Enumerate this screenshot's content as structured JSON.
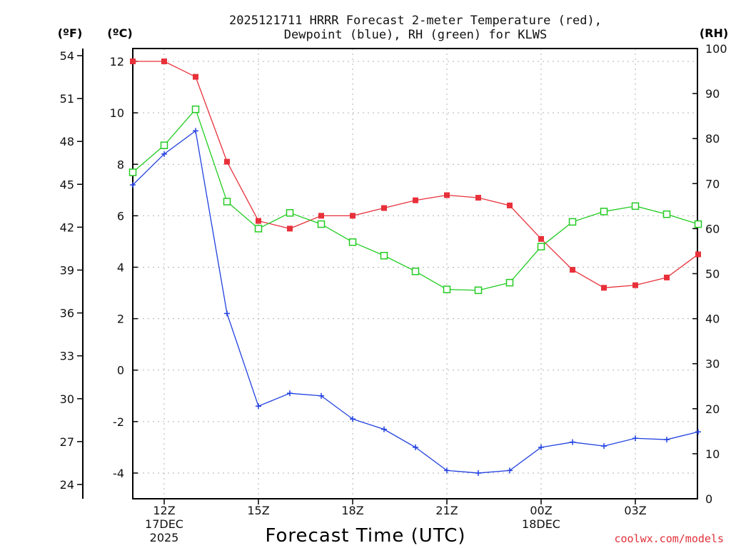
{
  "chart_data": {
    "type": "line",
    "title_line1": "2025121711 HRRR Forecast 2-meter Temperature (red),",
    "title_line2": "Dewpoint (blue), RH (green) for KLWS",
    "xlabel": "Forecast Time (UTC)",
    "credit": "coolwx.com/models",
    "unit_f": "(ºF)",
    "unit_c": "(ºC)",
    "unit_rh": "(RH)",
    "hours": [
      11,
      12,
      13,
      14,
      15,
      16,
      17,
      18,
      19,
      20,
      21,
      22,
      23,
      0,
      1,
      2,
      3,
      4,
      5
    ],
    "x_ticks": [
      {
        "index": 1,
        "lines": [
          "12Z",
          "17DEC",
          "2025"
        ]
      },
      {
        "index": 4,
        "lines": [
          "15Z"
        ]
      },
      {
        "index": 7,
        "lines": [
          "18Z"
        ]
      },
      {
        "index": 10,
        "lines": [
          "21Z"
        ]
      },
      {
        "index": 13,
        "lines": [
          "00Z",
          "18DEC"
        ]
      },
      {
        "index": 16,
        "lines": [
          "03Z"
        ]
      }
    ],
    "ylim_c": [
      -5,
      12.5
    ],
    "yticks_c": [
      "-4",
      "-2",
      "0",
      "2",
      "4",
      "6",
      "8",
      "10",
      "12"
    ],
    "yticks_f": [
      "24",
      "27",
      "30",
      "33",
      "36",
      "39",
      "42",
      "45",
      "48",
      "51",
      "54"
    ],
    "ylim_rh": [
      0,
      100
    ],
    "yticks_rh": [
      "0",
      "10",
      "20",
      "30",
      "40",
      "50",
      "60",
      "70",
      "80",
      "90",
      "100"
    ],
    "series": [
      {
        "name": "Temperature (°C)",
        "color": "#e8303a",
        "marker": "filled-square",
        "axis": "c",
        "values": [
          12.0,
          12.0,
          11.4,
          8.1,
          5.8,
          5.5,
          6.0,
          6.0,
          6.3,
          6.6,
          6.8,
          6.7,
          6.4,
          5.1,
          3.9,
          3.2,
          3.3,
          3.6,
          4.5
        ]
      },
      {
        "name": "Dewpoint (°C)",
        "color": "#2040e0",
        "marker": "plus",
        "axis": "c",
        "values": [
          7.2,
          8.4,
          9.3,
          2.2,
          -1.4,
          -0.9,
          -1.0,
          -1.9,
          -2.3,
          -3.0,
          -3.9,
          -4.0,
          -3.9,
          -3.0,
          -2.8,
          -2.95,
          -2.65,
          -2.7,
          -2.4
        ]
      },
      {
        "name": "RH (%)",
        "color": "#22cc22",
        "marker": "open-square",
        "axis": "rh",
        "values": [
          72.5,
          78.5,
          86.5,
          66.0,
          60.0,
          63.5,
          61.0,
          57.0,
          54.0,
          50.5,
          46.5,
          46.3,
          48.0,
          56.0,
          61.5,
          63.8,
          65.0,
          63.2,
          61.0
        ]
      }
    ]
  }
}
